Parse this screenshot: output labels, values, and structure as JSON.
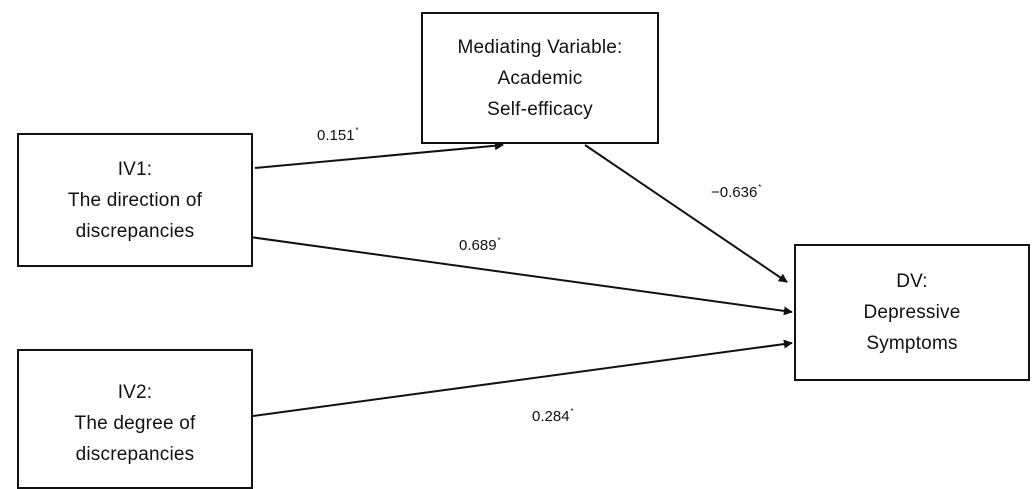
{
  "nodes": {
    "mediator": {
      "lines": [
        "Mediating Variable:",
        "Academic",
        "Self-efficacy"
      ]
    },
    "iv1": {
      "lines": [
        "IV1:",
        "The direction of",
        "discrepancies"
      ]
    },
    "iv2": {
      "lines": [
        "IV2:",
        "The degree of",
        "discrepancies"
      ]
    },
    "dv": {
      "lines": [
        "DV:",
        "Depressive",
        "Symptoms"
      ]
    }
  },
  "paths": {
    "iv1_to_mediator": {
      "value": "0.151",
      "mark": "*"
    },
    "mediator_to_dv": {
      "value": "−0.636",
      "mark": "*"
    },
    "iv1_to_dv": {
      "value": "0.689",
      "mark": "*"
    },
    "iv2_to_dv": {
      "value": "0.284",
      "mark": "*"
    }
  },
  "colors": {
    "stroke": "#111111",
    "background": "#ffffff"
  }
}
